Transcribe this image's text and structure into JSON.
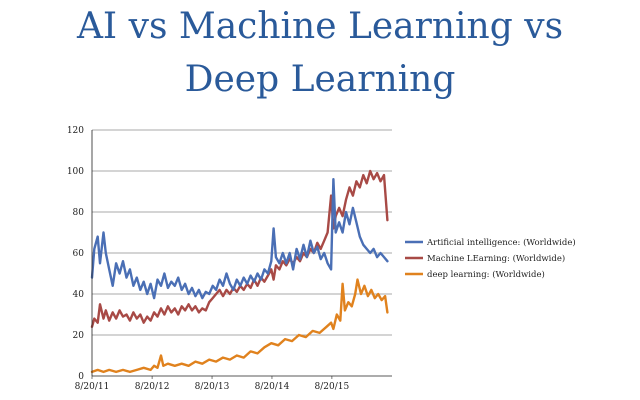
{
  "slide": {
    "title_line1": "AI vs Machine Learning vs",
    "title_line2": "Deep Learning"
  },
  "chart_data": {
    "type": "line",
    "title": "AI vs Machine Learning vs Deep Learning",
    "xlabel": "",
    "ylabel": "",
    "ylim": [
      0,
      120
    ],
    "yticks": [
      0,
      20,
      40,
      60,
      80,
      100,
      120
    ],
    "x_tick_labels": [
      "8/20/11",
      "8/20/12",
      "8/20/13",
      "8/20/14",
      "8/20/15"
    ],
    "x_domain": [
      "2011-08-20",
      "2016-08-20"
    ],
    "grid": true,
    "legend_position": "right",
    "series": [
      {
        "name": "Artificial intelligence: (Worldwide)",
        "color": "#4a6fb5",
        "points": [
          [
            "2011-08-20",
            48
          ],
          [
            "2011-09-03",
            62
          ],
          [
            "2011-09-24",
            68
          ],
          [
            "2011-10-08",
            55
          ],
          [
            "2011-10-29",
            70
          ],
          [
            "2011-11-12",
            60
          ],
          [
            "2011-12-03",
            52
          ],
          [
            "2011-12-24",
            44
          ],
          [
            "2012-01-14",
            55
          ],
          [
            "2012-02-04",
            50
          ],
          [
            "2012-02-25",
            56
          ],
          [
            "2012-03-17",
            48
          ],
          [
            "2012-04-07",
            52
          ],
          [
            "2012-04-28",
            44
          ],
          [
            "2012-05-19",
            48
          ],
          [
            "2012-06-09",
            42
          ],
          [
            "2012-06-30",
            46
          ],
          [
            "2012-07-21",
            40
          ],
          [
            "2012-08-11",
            45
          ],
          [
            "2012-09-01",
            38
          ],
          [
            "2012-09-22",
            47
          ],
          [
            "2012-10-13",
            44
          ],
          [
            "2012-11-03",
            50
          ],
          [
            "2012-11-24",
            43
          ],
          [
            "2012-12-15",
            46
          ],
          [
            "2013-01-05",
            44
          ],
          [
            "2013-01-26",
            48
          ],
          [
            "2013-02-16",
            42
          ],
          [
            "2013-03-09",
            45
          ],
          [
            "2013-03-30",
            40
          ],
          [
            "2013-04-20",
            43
          ],
          [
            "2013-05-11",
            39
          ],
          [
            "2013-06-01",
            42
          ],
          [
            "2013-06-22",
            38
          ],
          [
            "2013-07-13",
            41
          ],
          [
            "2013-08-03",
            40
          ],
          [
            "2013-08-24",
            44
          ],
          [
            "2013-09-14",
            42
          ],
          [
            "2013-10-05",
            47
          ],
          [
            "2013-10-26",
            44
          ],
          [
            "2013-11-16",
            50
          ],
          [
            "2013-12-07",
            45
          ],
          [
            "2013-12-28",
            42
          ],
          [
            "2014-01-18",
            47
          ],
          [
            "2014-02-08",
            44
          ],
          [
            "2014-03-01",
            48
          ],
          [
            "2014-03-22",
            45
          ],
          [
            "2014-04-12",
            49
          ],
          [
            "2014-05-03",
            46
          ],
          [
            "2014-05-24",
            50
          ],
          [
            "2014-06-14",
            47
          ],
          [
            "2014-07-05",
            52
          ],
          [
            "2014-07-26",
            50
          ],
          [
            "2014-08-16",
            56
          ],
          [
            "2014-08-30",
            72
          ],
          [
            "2014-09-13",
            58
          ],
          [
            "2014-10-04",
            55
          ],
          [
            "2014-10-25",
            60
          ],
          [
            "2014-11-15",
            55
          ],
          [
            "2014-12-06",
            60
          ],
          [
            "2014-12-27",
            52
          ],
          [
            "2015-01-17",
            62
          ],
          [
            "2015-02-07",
            57
          ],
          [
            "2015-02-28",
            64
          ],
          [
            "2015-03-21",
            58
          ],
          [
            "2015-04-11",
            66
          ],
          [
            "2015-05-02",
            60
          ],
          [
            "2015-05-23",
            63
          ],
          [
            "2015-06-13",
            57
          ],
          [
            "2015-07-04",
            60
          ],
          [
            "2015-07-25",
            55
          ],
          [
            "2015-08-15",
            52
          ],
          [
            "2015-08-29",
            96
          ],
          [
            "2015-09-12",
            70
          ],
          [
            "2015-10-03",
            75
          ],
          [
            "2015-10-24",
            70
          ],
          [
            "2015-11-14",
            80
          ],
          [
            "2015-12-05",
            74
          ],
          [
            "2015-12-26",
            82
          ],
          [
            "2016-01-16",
            75
          ],
          [
            "2016-02-06",
            68
          ],
          [
            "2016-02-27",
            64
          ],
          [
            "2016-03-19",
            62
          ],
          [
            "2016-04-09",
            60
          ],
          [
            "2016-04-30",
            62
          ],
          [
            "2016-05-21",
            58
          ],
          [
            "2016-06-11",
            60
          ],
          [
            "2016-07-02",
            58
          ],
          [
            "2016-07-23",
            56
          ]
        ]
      },
      {
        "name": "Machine LEarning: (Worldwide)",
        "color": "#a84a46",
        "points": [
          [
            "2011-08-20",
            24
          ],
          [
            "2011-09-03",
            28
          ],
          [
            "2011-09-24",
            26
          ],
          [
            "2011-10-08",
            35
          ],
          [
            "2011-10-29",
            28
          ],
          [
            "2011-11-12",
            32
          ],
          [
            "2011-12-03",
            27
          ],
          [
            "2011-12-24",
            31
          ],
          [
            "2012-01-14",
            28
          ],
          [
            "2012-02-04",
            32
          ],
          [
            "2012-02-25",
            29
          ],
          [
            "2012-03-17",
            30
          ],
          [
            "2012-04-07",
            27
          ],
          [
            "2012-04-28",
            31
          ],
          [
            "2012-05-19",
            28
          ],
          [
            "2012-06-09",
            30
          ],
          [
            "2012-06-30",
            26
          ],
          [
            "2012-07-21",
            29
          ],
          [
            "2012-08-11",
            27
          ],
          [
            "2012-09-01",
            31
          ],
          [
            "2012-09-22",
            29
          ],
          [
            "2012-10-13",
            33
          ],
          [
            "2012-11-03",
            30
          ],
          [
            "2012-11-24",
            34
          ],
          [
            "2012-12-15",
            31
          ],
          [
            "2013-01-05",
            33
          ],
          [
            "2013-01-26",
            30
          ],
          [
            "2013-02-16",
            34
          ],
          [
            "2013-03-09",
            32
          ],
          [
            "2013-03-30",
            35
          ],
          [
            "2013-04-20",
            32
          ],
          [
            "2013-05-11",
            34
          ],
          [
            "2013-06-01",
            31
          ],
          [
            "2013-06-22",
            33
          ],
          [
            "2013-07-13",
            32
          ],
          [
            "2013-08-03",
            36
          ],
          [
            "2013-08-24",
            38
          ],
          [
            "2013-09-14",
            40
          ],
          [
            "2013-10-05",
            42
          ],
          [
            "2013-10-26",
            39
          ],
          [
            "2013-11-16",
            42
          ],
          [
            "2013-12-07",
            40
          ],
          [
            "2013-12-28",
            43
          ],
          [
            "2014-01-18",
            41
          ],
          [
            "2014-02-08",
            44
          ],
          [
            "2014-03-01",
            42
          ],
          [
            "2014-03-22",
            45
          ],
          [
            "2014-04-12",
            43
          ],
          [
            "2014-05-03",
            47
          ],
          [
            "2014-05-24",
            44
          ],
          [
            "2014-06-14",
            48
          ],
          [
            "2014-07-05",
            46
          ],
          [
            "2014-07-26",
            49
          ],
          [
            "2014-08-16",
            52
          ],
          [
            "2014-08-30",
            47
          ],
          [
            "2014-09-13",
            54
          ],
          [
            "2014-10-04",
            52
          ],
          [
            "2014-10-25",
            56
          ],
          [
            "2014-11-15",
            54
          ],
          [
            "2014-12-06",
            57
          ],
          [
            "2014-12-27",
            55
          ],
          [
            "2015-01-17",
            58
          ],
          [
            "2015-02-07",
            56
          ],
          [
            "2015-02-28",
            60
          ],
          [
            "2015-03-21",
            58
          ],
          [
            "2015-04-11",
            62
          ],
          [
            "2015-05-02",
            60
          ],
          [
            "2015-05-23",
            65
          ],
          [
            "2015-06-13",
            62
          ],
          [
            "2015-07-04",
            66
          ],
          [
            "2015-07-25",
            70
          ],
          [
            "2015-08-15",
            88
          ],
          [
            "2015-08-29",
            72
          ],
          [
            "2015-09-12",
            78
          ],
          [
            "2015-10-03",
            82
          ],
          [
            "2015-10-24",
            78
          ],
          [
            "2015-11-14",
            86
          ],
          [
            "2015-12-05",
            92
          ],
          [
            "2015-12-26",
            88
          ],
          [
            "2016-01-16",
            95
          ],
          [
            "2016-02-06",
            92
          ],
          [
            "2016-02-27",
            98
          ],
          [
            "2016-03-19",
            94
          ],
          [
            "2016-04-09",
            100
          ],
          [
            "2016-04-30",
            96
          ],
          [
            "2016-05-21",
            99
          ],
          [
            "2016-06-11",
            95
          ],
          [
            "2016-07-02",
            98
          ],
          [
            "2016-07-23",
            76
          ]
        ]
      },
      {
        "name": "deep learning: (Worldwide)",
        "color": "#e0821e",
        "points": [
          [
            "2011-08-20",
            2
          ],
          [
            "2011-09-24",
            3
          ],
          [
            "2011-10-29",
            2
          ],
          [
            "2011-12-03",
            3
          ],
          [
            "2012-01-14",
            2
          ],
          [
            "2012-02-25",
            3
          ],
          [
            "2012-04-07",
            2
          ],
          [
            "2012-05-19",
            3
          ],
          [
            "2012-06-30",
            4
          ],
          [
            "2012-08-11",
            3
          ],
          [
            "2012-09-01",
            5
          ],
          [
            "2012-09-22",
            4
          ],
          [
            "2012-10-13",
            10
          ],
          [
            "2012-10-27",
            5
          ],
          [
            "2012-11-24",
            6
          ],
          [
            "2013-01-05",
            5
          ],
          [
            "2013-02-16",
            6
          ],
          [
            "2013-03-30",
            5
          ],
          [
            "2013-05-11",
            7
          ],
          [
            "2013-06-22",
            6
          ],
          [
            "2013-08-03",
            8
          ],
          [
            "2013-09-14",
            7
          ],
          [
            "2013-10-26",
            9
          ],
          [
            "2013-12-07",
            8
          ],
          [
            "2014-01-18",
            10
          ],
          [
            "2014-03-01",
            9
          ],
          [
            "2014-04-12",
            12
          ],
          [
            "2014-05-24",
            11
          ],
          [
            "2014-07-05",
            14
          ],
          [
            "2014-08-16",
            16
          ],
          [
            "2014-09-27",
            15
          ],
          [
            "2014-11-08",
            18
          ],
          [
            "2014-12-20",
            17
          ],
          [
            "2015-01-31",
            20
          ],
          [
            "2015-03-14",
            19
          ],
          [
            "2015-04-25",
            22
          ],
          [
            "2015-06-06",
            21
          ],
          [
            "2015-07-18",
            24
          ],
          [
            "2015-08-15",
            26
          ],
          [
            "2015-08-29",
            23
          ],
          [
            "2015-09-19",
            30
          ],
          [
            "2015-10-10",
            27
          ],
          [
            "2015-10-24",
            45
          ],
          [
            "2015-11-07",
            32
          ],
          [
            "2015-11-28",
            36
          ],
          [
            "2015-12-19",
            34
          ],
          [
            "2016-01-09",
            40
          ],
          [
            "2016-01-23",
            47
          ],
          [
            "2016-02-13",
            40
          ],
          [
            "2016-03-05",
            44
          ],
          [
            "2016-03-26",
            39
          ],
          [
            "2016-04-16",
            42
          ],
          [
            "2016-05-07",
            38
          ],
          [
            "2016-05-28",
            40
          ],
          [
            "2016-06-18",
            37
          ],
          [
            "2016-07-09",
            39
          ],
          [
            "2016-07-23",
            31
          ]
        ]
      }
    ]
  }
}
